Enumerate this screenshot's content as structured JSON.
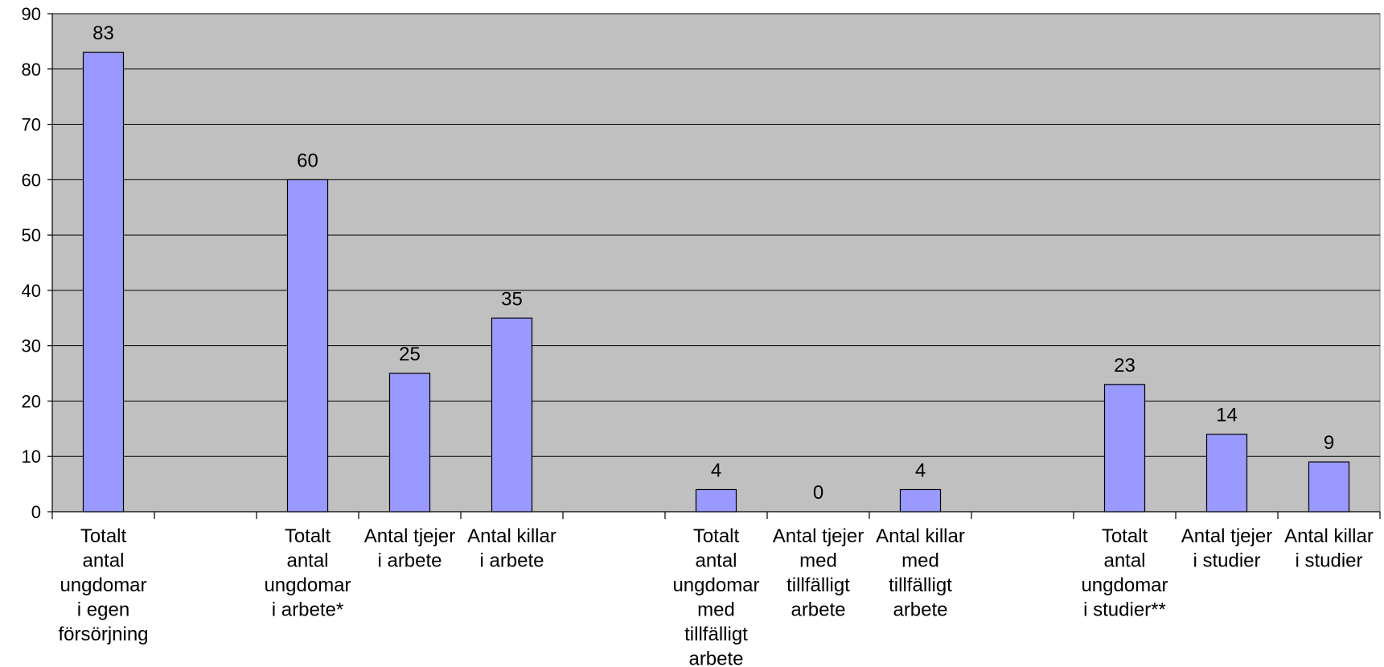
{
  "chart_data": {
    "type": "bar",
    "title": "",
    "xlabel": "",
    "ylabel": "",
    "ylim": [
      0,
      90
    ],
    "yticks": [
      0,
      10,
      20,
      30,
      40,
      50,
      60,
      70,
      80,
      90
    ],
    "grid": true,
    "legend": "none",
    "colors": {
      "plot_bg": "#c0c0c0",
      "bar_fill": "#9999ff",
      "bar_stroke": "#000000",
      "grid": "#000000"
    },
    "categories": [
      "Totalt antal ungdomar i egen försörjning",
      "",
      "Totalt antal ungdomar i arbete*",
      "Antal tjejer i arbete",
      "Antal killar i arbete",
      "",
      "Totalt antal ungdomar med tillfälligt arbete",
      "Antal tjejer med tillfälligt arbete",
      "Antal killar med tillfälligt arbete",
      "",
      "Totalt antal ungdomar i studier**",
      "Antal tjejer i studier",
      "Antal killar i studier"
    ],
    "category_lines": [
      [
        "Totalt",
        "antal",
        "ungdomar",
        "i egen",
        "försörjning"
      ],
      [],
      [
        "Totalt",
        "antal",
        "ungdomar",
        "i arbete*"
      ],
      [
        "Antal tjejer",
        "i arbete"
      ],
      [
        "Antal killar",
        "i arbete"
      ],
      [],
      [
        "Totalt",
        "antal",
        "ungdomar",
        "med",
        "tillfälligt",
        "arbete"
      ],
      [
        "Antal tjejer",
        "med",
        "tillfälligt",
        "arbete"
      ],
      [
        "Antal killar",
        "med",
        "tillfälligt",
        "arbete"
      ],
      [],
      [
        "Totalt",
        "antal",
        "ungdomar",
        "i studier**"
      ],
      [
        "Antal tjejer",
        "i studier"
      ],
      [
        "Antal killar",
        "i studier"
      ]
    ],
    "values": [
      83,
      null,
      60,
      25,
      35,
      null,
      4,
      0,
      4,
      null,
      23,
      14,
      9
    ],
    "data_labels": [
      "83",
      "",
      "60",
      "25",
      "35",
      "",
      "4",
      "0",
      "4",
      "",
      "23",
      "14",
      "9"
    ]
  }
}
